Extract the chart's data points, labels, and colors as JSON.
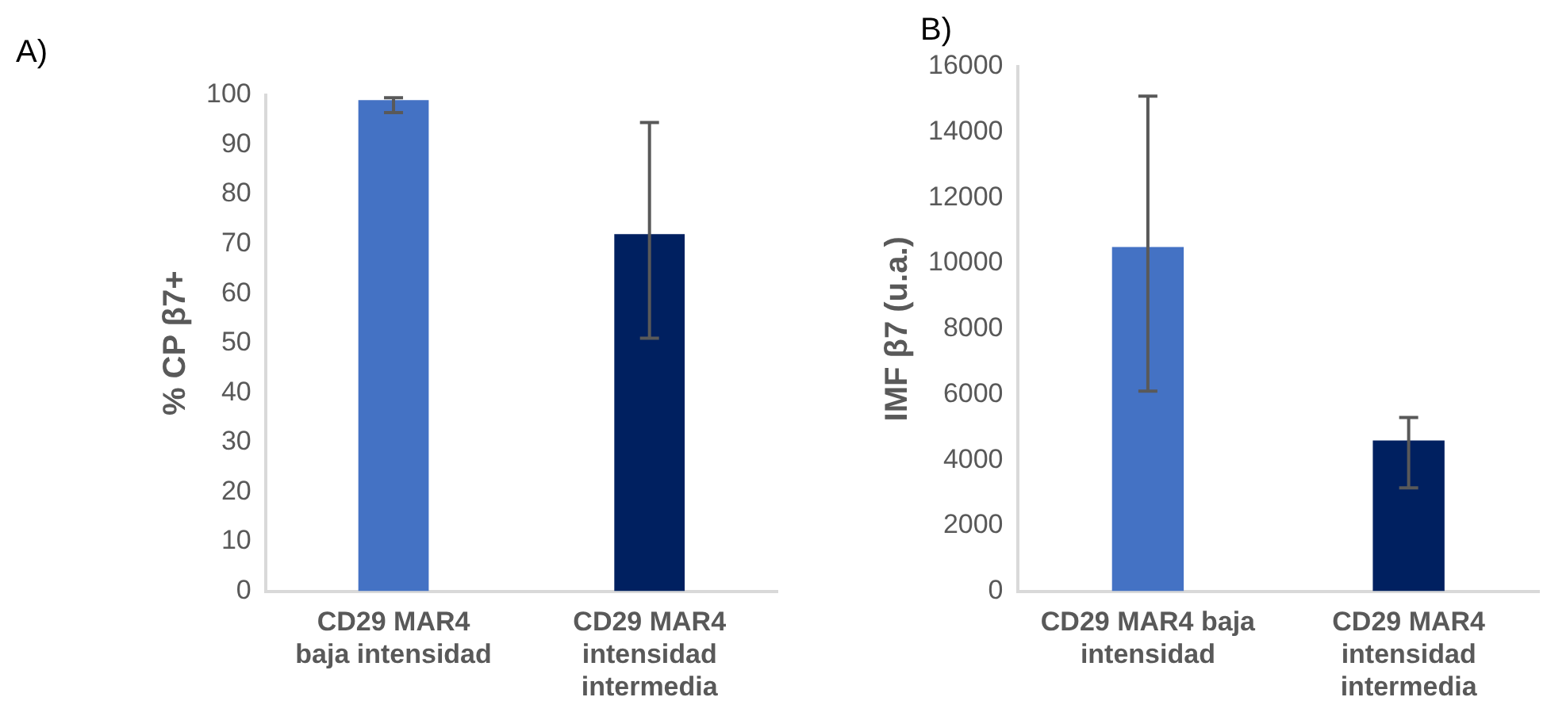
{
  "chart_data": [
    {
      "type": "bar",
      "title": "A)",
      "ylabel": "% CP β7+",
      "categories": [
        "CD29 MAR4 baja intensidad",
        "CD29 MAR4 intensidad intermedia"
      ],
      "values": [
        99,
        72
      ],
      "colors": [
        "#4472c4",
        "#002060"
      ],
      "errors": [
        [
          96.5,
          99.5
        ],
        [
          51,
          94.5
        ]
      ],
      "ylim": [
        0,
        100
      ],
      "yticks": [
        0,
        10,
        20,
        30,
        40,
        50,
        60,
        70,
        80,
        90,
        100
      ],
      "grid": false,
      "legend": false
    },
    {
      "type": "bar",
      "title": "B)",
      "ylabel": "IMF β7 (u.a.)",
      "categories": [
        "CD29 MAR4 baja intensidad",
        "CD29 MAR4 intensidad intermedia"
      ],
      "values": [
        10500,
        4600
      ],
      "colors": [
        "#4472c4",
        "#002060"
      ],
      "errors": [
        [
          6100,
          15100
        ],
        [
          3150,
          5300
        ]
      ],
      "ylim": [
        0,
        16000
      ],
      "yticks": [
        0,
        2000,
        4000,
        6000,
        8000,
        10000,
        12000,
        14000,
        16000
      ],
      "grid": false,
      "legend": false
    }
  ]
}
